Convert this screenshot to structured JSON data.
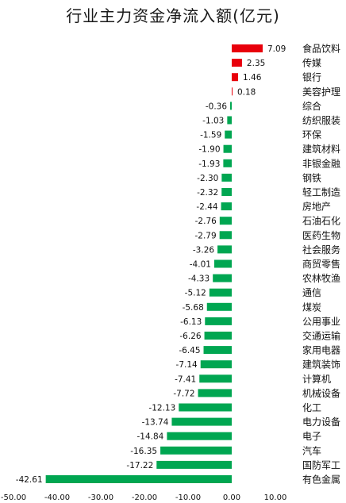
{
  "chart_data": {
    "type": "bar",
    "orientation": "horizontal",
    "title": "行业主力资金净流入额(亿元)",
    "categories": [
      "食品饮料",
      "传媒",
      "银行",
      "美容护理",
      "综合",
      "纺织服装",
      "环保",
      "建筑材料",
      "非银金融",
      "钢铁",
      "轻工制造",
      "房地产",
      "石油石化",
      "医药生物",
      "社会服务",
      "商贸零售",
      "农林牧渔",
      "通信",
      "煤炭",
      "公用事业",
      "交通运输",
      "家用电器",
      "建筑装饰",
      "计算机",
      "机械设备",
      "化工",
      "电力设备",
      "电子",
      "汽车",
      "国防军工",
      "有色金属"
    ],
    "values": [
      7.09,
      2.35,
      1.46,
      0.18,
      -0.36,
      -1.03,
      -1.59,
      -1.9,
      -1.93,
      -2.3,
      -2.32,
      -2.44,
      -2.76,
      -2.79,
      -3.26,
      -4.01,
      -4.33,
      -5.12,
      -5.68,
      -6.13,
      -6.26,
      -6.45,
      -7.14,
      -7.41,
      -7.72,
      -12.13,
      -13.74,
      -14.84,
      -16.35,
      -17.22,
      -42.61
    ],
    "value_labels": [
      "7.09",
      "2.35",
      "1.46",
      "0.18",
      "-0.36",
      "-1.03",
      "-1.59",
      "-1.90",
      "-1.93",
      "-2.30",
      "-2.32",
      "-2.44",
      "-2.76",
      "-2.79",
      "-3.26",
      "-4.01",
      "-4.33",
      "-5.12",
      "-5.68",
      "-6.13",
      "-6.26",
      "-6.45",
      "-7.14",
      "-7.41",
      "-7.72",
      "-12.13",
      "-13.74",
      "-14.84",
      "-16.35",
      "-17.22",
      "-42.61"
    ],
    "xlim": [
      -50,
      10
    ],
    "x_ticks": [
      -50,
      -40,
      -30,
      -20,
      -10,
      0,
      10
    ],
    "x_tick_labels": [
      "-50.00",
      "-40.00",
      "-30.00",
      "-20.00",
      "-10.00",
      "0.00",
      "10.00"
    ],
    "grid": false,
    "legend": "none",
    "colors": {
      "positive": "#e8000b",
      "negative": "#00a651"
    }
  }
}
